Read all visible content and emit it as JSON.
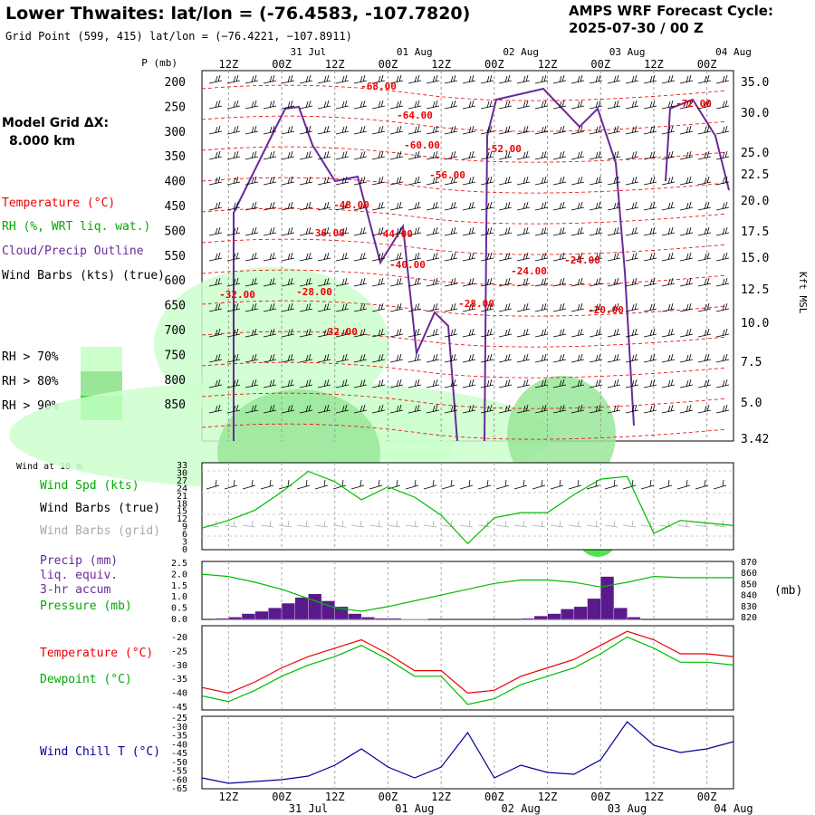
{
  "header": {
    "title": "Lower Thwaites:  lat/lon = (-76.4583, -107.7820)",
    "gridpoint": "Grid Point (599, 415) lat/lon = (−76.4221, −107.8911)",
    "cycle_line1": "AMPS WRF Forecast Cycle:",
    "cycle_line2": "2025-07-30 / 00  Z",
    "model_grid_label": "Model Grid ΔX:",
    "model_grid_value": "8.000 km"
  },
  "legend": {
    "temperature": "Temperature (°C)",
    "rh": "RH (%, WRT liq. wat.)",
    "cloud": "Cloud/Precip Outline",
    "wind": "Wind Barbs (kts) (true)",
    "rh70": "RH > 70%",
    "rh80": "RH > 80%",
    "rh90": "RH > 90%",
    "rh70_color": "#ccffcc",
    "rh80_color": "#99e699",
    "rh90_color": "#33dd33"
  },
  "time_axis": {
    "top_days": [
      "31 Jul",
      "01 Aug",
      "02 Aug",
      "03 Aug",
      "04 Aug"
    ],
    "ticks": [
      "12Z",
      "00Z",
      "12Z",
      "00Z",
      "12Z",
      "00Z",
      "12Z",
      "00Z",
      "12Z",
      "00Z"
    ],
    "bottom_days": [
      "31 Jul",
      "01 Aug",
      "02 Aug",
      "03 Aug",
      "04 Aug"
    ]
  },
  "panels": {
    "wind_at_10m": "Wind at 10 m",
    "wind_spd": "Wind Spd (kts)",
    "wind_barbs_true": "Wind Barbs (true)",
    "wind_barbs_grid": "Wind Barbs (grid)",
    "precip_1": "Precip (mm)",
    "precip_2": "liq. equiv.",
    "precip_3": "3-hr accum",
    "pressure": "Pressure (mb)",
    "pressure_unit": "(mb)",
    "temperature": "Temperature (°C)",
    "dewpoint": "Dewpoint (°C)",
    "windchill": "Wind Chill T (°C)"
  },
  "chart_data": [
    {
      "type": "heatmap",
      "name": "cross_section",
      "ylabel": "P (mb)",
      "yticks": [
        "200",
        "250",
        "300",
        "350",
        "400",
        "450",
        "500",
        "550",
        "600",
        "650",
        "700",
        "750",
        "800",
        "850"
      ],
      "right_label": "Kft MSL",
      "right_ticks": [
        "35.0",
        "30.0",
        "25.0",
        "22.5",
        "20.0",
        "17.5",
        "15.0",
        "12.5",
        "10.0",
        "7.5",
        "5.0",
        "3.42"
      ],
      "temp_labels": [
        "-68.00",
        "-64.00",
        "-60.00",
        "-56.00",
        "-52.00",
        "-72.00",
        "-48.00",
        "-36.00",
        "-44.00",
        "-40.00",
        "-28.00",
        "-24.00",
        "-32.00",
        "-28.00",
        "-24.00",
        "-32.00",
        "-20.00"
      ]
    },
    {
      "type": "line",
      "name": "wind_speed",
      "yticks": [
        "33",
        "30",
        "27",
        "24",
        "21",
        "18",
        "15",
        "12",
        "9",
        "6",
        "3",
        "0"
      ],
      "ylim": [
        0,
        33
      ],
      "x_hours": [
        0,
        6,
        12,
        18,
        24,
        30,
        36,
        42,
        48,
        54,
        60,
        66,
        72,
        78,
        84,
        90,
        96,
        102,
        108,
        114,
        120
      ],
      "series": [
        {
          "name": "Wind Spd (kts)",
          "color": "#00bb00",
          "values": [
            8,
            11,
            15,
            22,
            30,
            26,
            19,
            24,
            20,
            13,
            2,
            12,
            14,
            14,
            21,
            27,
            28,
            6,
            11,
            10,
            9
          ]
        }
      ]
    },
    {
      "type": "bar",
      "name": "precip",
      "yticks": [
        "2.5",
        "2.0",
        "1.5",
        "1.0",
        "0.5",
        "0.0"
      ],
      "ylim": [
        0,
        2.5
      ],
      "right_ticks": [
        "870",
        "860",
        "850",
        "840",
        "830",
        "820"
      ],
      "right_ylim": [
        820,
        870
      ],
      "bar_start_hours": [
        3,
        6,
        9,
        12,
        15,
        18,
        21,
        24,
        27,
        30,
        33,
        36,
        39,
        42,
        45,
        48,
        51,
        54,
        57,
        60,
        63,
        66,
        69,
        72,
        75,
        78,
        81,
        84,
        87,
        90,
        93,
        96
      ],
      "values": [
        0.05,
        0.1,
        0.25,
        0.35,
        0.5,
        0.7,
        0.95,
        1.1,
        0.8,
        0.55,
        0.25,
        0.1,
        0.05,
        0.05,
        0.02,
        0.02,
        0.0,
        0.0,
        0.0,
        0.0,
        0.0,
        0.0,
        0.0,
        0.05,
        0.15,
        0.25,
        0.45,
        0.55,
        0.9,
        1.85,
        0.5,
        0.1
      ],
      "bar_color": "#5a1a8c",
      "series": [
        {
          "name": "Pressure (mb)",
          "color": "#00bb00",
          "x_hours": [
            0,
            6,
            12,
            18,
            24,
            30,
            36,
            42,
            48,
            54,
            60,
            66,
            72,
            78,
            84,
            90,
            96,
            102,
            108,
            114,
            120
          ],
          "values": [
            859,
            857,
            852,
            846,
            838,
            830,
            827,
            831,
            836,
            841,
            846,
            851,
            854,
            854,
            852,
            848,
            852,
            857,
            856,
            856,
            856
          ]
        }
      ]
    },
    {
      "type": "line",
      "name": "temperature",
      "yticks": [
        "-20",
        "-25",
        "-30",
        "-35",
        "-40",
        "-45"
      ],
      "ylim": [
        -45,
        -15
      ],
      "x_hours": [
        0,
        6,
        12,
        18,
        24,
        30,
        36,
        42,
        48,
        54,
        60,
        66,
        72,
        78,
        84,
        90,
        96,
        102,
        108,
        114,
        120
      ],
      "series": [
        {
          "name": "Temperature (°C)",
          "color": "#ee0000",
          "values": [
            -37,
            -39,
            -35,
            -30,
            -26,
            -23,
            -20,
            -25,
            -31,
            -31,
            -39,
            -38,
            -33,
            -30,
            -27,
            -22,
            -17,
            -20,
            -25,
            -25,
            -26
          ]
        },
        {
          "name": "Dewpoint (°C)",
          "color": "#00bb00",
          "values": [
            -40,
            -42,
            -38,
            -33,
            -29,
            -26,
            -22,
            -27,
            -33,
            -33,
            -43,
            -41,
            -36,
            -33,
            -30,
            -25,
            -19,
            -23,
            -28,
            -28,
            -29
          ]
        }
      ]
    },
    {
      "type": "line",
      "name": "wind_chill",
      "yticks": [
        "-25",
        "-30",
        "-35",
        "-40",
        "-45",
        "-50",
        "-55",
        "-60",
        "-65"
      ],
      "ylim": [
        -65,
        -25
      ],
      "x_hours": [
        0,
        6,
        12,
        18,
        24,
        30,
        36,
        42,
        48,
        54,
        60,
        66,
        72,
        78,
        84,
        90,
        96,
        102,
        108,
        114,
        120
      ],
      "series": [
        {
          "name": "Wind Chill T (°C)",
          "color": "#000099",
          "values": [
            -59,
            -62,
            -61,
            -60,
            -58,
            -52,
            -43,
            -53,
            -59,
            -53,
            -34,
            -59,
            -52,
            -56,
            -57,
            -49,
            -28,
            -41,
            -45,
            -43,
            -39
          ]
        }
      ]
    }
  ]
}
